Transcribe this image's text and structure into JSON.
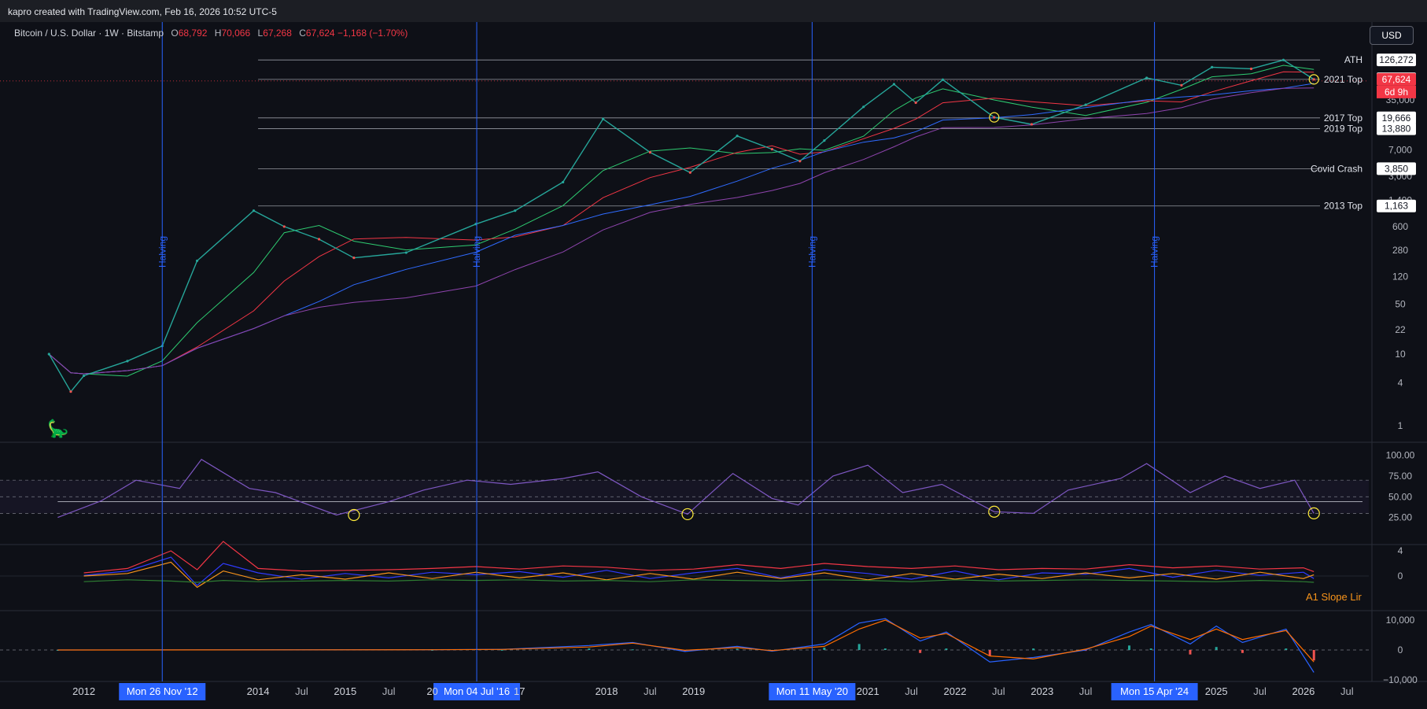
{
  "header": {
    "created_by": "kapro created with TradingView.com, Feb 16, 2026 10:52 UTC-5"
  },
  "legend": {
    "symbol": "Bitcoin / U.S. Dollar · 1W · Bitstamp",
    "open_label": "O",
    "open": "68,792",
    "high_label": "H",
    "high": "70,066",
    "low_label": "L",
    "low": "67,268",
    "close_label": "C",
    "close": "67,624",
    "change": "−1,168 (−1.70%)"
  },
  "currency_button": "USD",
  "price_badge": {
    "price": "67,624",
    "countdown": "6d 9h"
  },
  "indicator_label": "A1 Slope Lir",
  "colors": {
    "background": "#0e1017",
    "up": "#26a69a",
    "down": "#ef5350",
    "halving": "#2962ff",
    "ma_green": "#2ecc71",
    "ma_red": "#f23645",
    "ma_blue": "#2f6bff",
    "ma_purple": "#8e44ad",
    "rsi": "#7e57c2",
    "marker": "#ffeb3b"
  },
  "chart_data": [
    {
      "type": "line",
      "title": "Bitcoin / U.S. Dollar · 1W · Bitstamp",
      "scale": "log",
      "y_tick_labels": [
        "35,000",
        "7,000",
        "3,000",
        "1,400",
        "600",
        "280",
        "120",
        "50",
        "22",
        "10",
        "4",
        "1"
      ],
      "y_ticks": [
        35000,
        7000,
        3000,
        1400,
        600,
        280,
        120,
        50,
        22,
        10,
        4,
        1
      ],
      "x_tick_labels": [
        "2012",
        "2014",
        "Jul",
        "2015",
        "Jul",
        "20",
        "17",
        "2018",
        "Jul",
        "2019",
        "2021",
        "Jul",
        "2022",
        "Jul",
        "2023",
        "Jul",
        "2025",
        "Jul",
        "2026",
        "Jul"
      ],
      "x": [
        2011.6,
        2011.85,
        2012.0,
        2012.5,
        2012.9,
        2013.3,
        2013.95,
        2014.3,
        2014.7,
        2015.1,
        2015.7,
        2016.5,
        2016.95,
        2017.5,
        2017.96,
        2018.5,
        2018.96,
        2019.5,
        2019.9,
        2020.22,
        2020.5,
        2020.95,
        2021.3,
        2021.55,
        2021.86,
        2022.45,
        2022.88,
        2023.5,
        2024.2,
        2024.6,
        2024.95,
        2025.4,
        2025.77,
        2026.12
      ],
      "series": [
        {
          "name": "",
          "values": [
            10,
            3,
            5,
            8,
            13,
            200,
            1000,
            600,
            400,
            220,
            260,
            650,
            1000,
            2500,
            19000,
            6500,
            3400,
            11000,
            7200,
            4900,
            9500,
            28000,
            58000,
            32000,
            67000,
            20000,
            16000,
            30000,
            71000,
            56000,
            100000,
            95000,
            126000,
            67624
          ]
        }
      ],
      "horizontal_levels": [
        {
          "label": "ATH",
          "value": "126,272"
        },
        {
          "label": "",
          "value": "69,000"
        },
        {
          "label": "2021 Top",
          "value": "67,624"
        },
        {
          "label": "2017 Top",
          "value": "19,666"
        },
        {
          "label": "2019 Top",
          "value": "13,880"
        },
        {
          "label": "Covid Crash",
          "value": "3,850"
        },
        {
          "label": "2013 Top",
          "value": "1,163"
        }
      ],
      "vertical_events": [
        {
          "label": "Halving",
          "date": "Mon 26 Nov '12"
        },
        {
          "label": "Halving",
          "date": "Mon 04 Jul '16"
        },
        {
          "label": "Halving",
          "date": "Mon 11 May '20"
        },
        {
          "label": "Halving",
          "date": "Mon 15 Apr '24"
        }
      ]
    },
    {
      "type": "line",
      "y_tick_labels": [
        "100.00",
        "75.00",
        "50.00",
        "25.00"
      ],
      "y_ticks": [
        100,
        75,
        50,
        25
      ],
      "band": [
        30,
        70
      ],
      "x": [
        2011.7,
        2012.2,
        2012.6,
        2013.1,
        2013.35,
        2013.9,
        2014.2,
        2014.9,
        2015.5,
        2015.9,
        2016.4,
        2016.9,
        2017.5,
        2017.9,
        2018.4,
        2018.93,
        2019.45,
        2019.9,
        2020.2,
        2020.6,
        2021.0,
        2021.4,
        2021.85,
        2022.45,
        2022.9,
        2023.3,
        2023.9,
        2024.2,
        2024.7,
        2025.1,
        2025.5,
        2025.9,
        2026.12
      ],
      "series": [
        {
          "name": "",
          "values": [
            25,
            45,
            70,
            60,
            95,
            60,
            55,
            28,
            44,
            58,
            70,
            65,
            72,
            80,
            50,
            29,
            78,
            48,
            40,
            75,
            88,
            55,
            65,
            32,
            30,
            58,
            72,
            90,
            55,
            75,
            60,
            70,
            30
          ]
        }
      ]
    },
    {
      "type": "line",
      "y_tick_labels": [
        "4",
        "0"
      ],
      "y_ticks": [
        4,
        0
      ],
      "x": [
        2012.0,
        2012.5,
        2013.0,
        2013.3,
        2013.6,
        2014.0,
        2014.5,
        2015.0,
        2015.5,
        2016.0,
        2016.5,
        2017.0,
        2017.5,
        2018.0,
        2018.5,
        2019.0,
        2019.5,
        2020.0,
        2020.5,
        2021.0,
        2021.5,
        2022.0,
        2022.5,
        2023.0,
        2023.5,
        2024.0,
        2024.5,
        2025.0,
        2025.5,
        2026.0,
        2026.12
      ],
      "series": [
        {
          "name": "",
          "values": [
            0.5,
            1.2,
            4.0,
            1.0,
            5.5,
            1.2,
            0.8,
            0.9,
            1.0,
            1.2,
            1.5,
            1.1,
            1.6,
            1.4,
            0.9,
            1.1,
            1.8,
            1.2,
            2.0,
            1.5,
            1.2,
            1.6,
            1.0,
            1.2,
            1.1,
            1.8,
            1.3,
            1.6,
            1.1,
            1.3,
            0.7
          ]
        },
        {
          "name": "",
          "values": [
            0.1,
            0.8,
            3.0,
            -1.5,
            2.0,
            0.5,
            -0.5,
            0.4,
            -0.3,
            0.6,
            0.2,
            0.7,
            -0.2,
            0.9,
            -0.4,
            0.5,
            1.2,
            -0.3,
            1.0,
            0.4,
            -0.5,
            0.8,
            -0.6,
            0.5,
            0.3,
            1.2,
            -0.2,
            0.9,
            0.1,
            0.6,
            -0.4
          ]
        },
        {
          "name": "",
          "values": [
            0.0,
            0.4,
            2.2,
            -1.8,
            0.8,
            -0.6,
            0.2,
            -0.5,
            0.5,
            -0.4,
            0.6,
            -0.3,
            0.5,
            -0.6,
            0.4,
            -0.5,
            0.6,
            -0.4,
            0.5,
            -0.6,
            0.4,
            -0.5,
            0.3,
            -0.4,
            0.5,
            -0.3,
            0.4,
            -0.5,
            0.6,
            -0.4,
            0.2
          ]
        },
        {
          "name": "",
          "values": [
            -0.9,
            -0.6,
            -0.8,
            -1.0,
            -0.7,
            -0.9,
            -0.8,
            -0.7,
            -0.8,
            -0.6,
            -0.7,
            -0.6,
            -0.8,
            -0.7,
            -0.9,
            -0.6,
            -0.7,
            -0.8,
            -0.6,
            -0.7,
            -0.9,
            -0.6,
            -0.8,
            -0.7,
            -0.6,
            -0.7,
            -0.8,
            -0.9,
            -0.7,
            -0.9,
            -1.0
          ]
        }
      ]
    },
    {
      "type": "line",
      "y_tick_labels": [
        "10,000",
        "0",
        "−10,000"
      ],
      "y_ticks": [
        10000,
        0,
        -10000
      ],
      "x": [
        2011.7,
        2016.0,
        2016.8,
        2017.8,
        2018.3,
        2018.9,
        2019.5,
        2019.9,
        2020.5,
        2020.9,
        2021.2,
        2021.6,
        2021.9,
        2022.4,
        2022.9,
        2023.5,
        2024.0,
        2024.25,
        2024.7,
        2025.0,
        2025.3,
        2025.8,
        2026.12
      ],
      "series": [
        {
          "name": "",
          "values": [
            0,
            100,
            200,
            1500,
            2500,
            -500,
            1200,
            -400,
            2000,
            9000,
            10500,
            3000,
            6000,
            -4000,
            -2500,
            0,
            6000,
            8500,
            2000,
            8000,
            2500,
            7000,
            -7500
          ]
        },
        {
          "name": "",
          "values": [
            0,
            80,
            180,
            1000,
            2300,
            -100,
            800,
            -200,
            1200,
            7000,
            10000,
            4000,
            5500,
            -2000,
            -3000,
            300,
            4500,
            8000,
            3500,
            7000,
            3500,
            6500,
            -4000
          ]
        }
      ]
    }
  ]
}
